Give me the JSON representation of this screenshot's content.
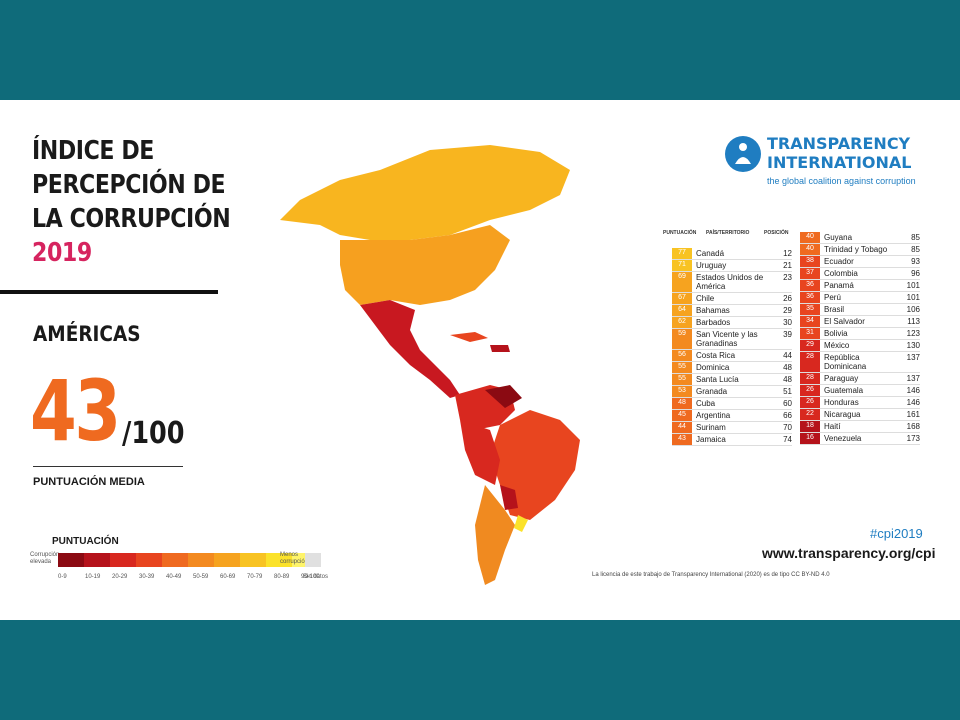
{
  "title": {
    "lines": [
      "ÍNDICE DE",
      "PERCEPCIÓN DE",
      "LA CORRUPCIÓN"
    ],
    "year": "2019"
  },
  "region": "AMÉRICAS",
  "score": {
    "value": "43",
    "denominator": "/100",
    "label": "PUNTUACIÓN MEDIA"
  },
  "legend": {
    "title": "PUNTUACIÓN",
    "left_label": "Corrupción elevada",
    "right_label": "Menos corrupción",
    "no_data": "Sin datos",
    "ticks": [
      "0-9",
      "10-19",
      "20-29",
      "30-39",
      "40-49",
      "50-59",
      "60-69",
      "70-79",
      "80-89",
      "90-100"
    ],
    "colors": [
      "#8b0a12",
      "#b5121b",
      "#d8281f",
      "#e8451f",
      "#ef6a20",
      "#f38a20",
      "#f6a31f",
      "#f8c323",
      "#fbe22a",
      "#fef46a"
    ]
  },
  "logo": {
    "name_line1": "TRANSPARENCY",
    "name_line2": "INTERNATIONAL",
    "tagline": "the global coalition against corruption",
    "color": "#1f7dc1"
  },
  "table": {
    "headers": {
      "score": "PUNTUACIÓN",
      "country": "PAÍS/TERRITORIO",
      "rank": "POSICIÓN"
    },
    "left": [
      {
        "score": "77",
        "country": "Canadá",
        "rank": "12"
      },
      {
        "score": "71",
        "country": "Uruguay",
        "rank": "21"
      },
      {
        "score": "69",
        "country": "Estados Unidos de América",
        "rank": "23"
      },
      {
        "score": "67",
        "country": "Chile",
        "rank": "26"
      },
      {
        "score": "64",
        "country": "Bahamas",
        "rank": "29"
      },
      {
        "score": "62",
        "country": "Barbados",
        "rank": "30"
      },
      {
        "score": "59",
        "country": "San Vicente y las Granadinas",
        "rank": "39"
      },
      {
        "score": "56",
        "country": "Costa Rica",
        "rank": "44"
      },
      {
        "score": "55",
        "country": "Dominica",
        "rank": "48"
      },
      {
        "score": "55",
        "country": "Santa Lucía",
        "rank": "48"
      },
      {
        "score": "53",
        "country": "Granada",
        "rank": "51"
      },
      {
        "score": "48",
        "country": "Cuba",
        "rank": "60"
      },
      {
        "score": "45",
        "country": "Argentina",
        "rank": "66"
      },
      {
        "score": "44",
        "country": "Surinam",
        "rank": "70"
      },
      {
        "score": "43",
        "country": "Jamaica",
        "rank": "74"
      }
    ],
    "right": [
      {
        "score": "40",
        "country": "Guyana",
        "rank": "85"
      },
      {
        "score": "40",
        "country": "Trinidad y Tobago",
        "rank": "85"
      },
      {
        "score": "38",
        "country": "Ecuador",
        "rank": "93"
      },
      {
        "score": "37",
        "country": "Colombia",
        "rank": "96"
      },
      {
        "score": "36",
        "country": "Panamá",
        "rank": "101"
      },
      {
        "score": "36",
        "country": "Perú",
        "rank": "101"
      },
      {
        "score": "35",
        "country": "Brasil",
        "rank": "106"
      },
      {
        "score": "34",
        "country": "El Salvador",
        "rank": "113"
      },
      {
        "score": "31",
        "country": "Bolivia",
        "rank": "123"
      },
      {
        "score": "29",
        "country": "México",
        "rank": "130"
      },
      {
        "score": "28",
        "country": "República Dominicana",
        "rank": "137"
      },
      {
        "score": "28",
        "country": "Paraguay",
        "rank": "137"
      },
      {
        "score": "26",
        "country": "Guatemala",
        "rank": "146"
      },
      {
        "score": "26",
        "country": "Honduras",
        "rank": "146"
      },
      {
        "score": "22",
        "country": "Nicaragua",
        "rank": "161"
      },
      {
        "score": "18",
        "country": "Haití",
        "rank": "168"
      },
      {
        "score": "16",
        "country": "Venezuela",
        "rank": "173"
      }
    ]
  },
  "footer": {
    "hashtag": "#cpi2019",
    "url": "www.transparency.org/cpi",
    "license": "La licencia de este trabajo de Transparency International (2020) es de tipo CC BY-ND 4.0"
  }
}
